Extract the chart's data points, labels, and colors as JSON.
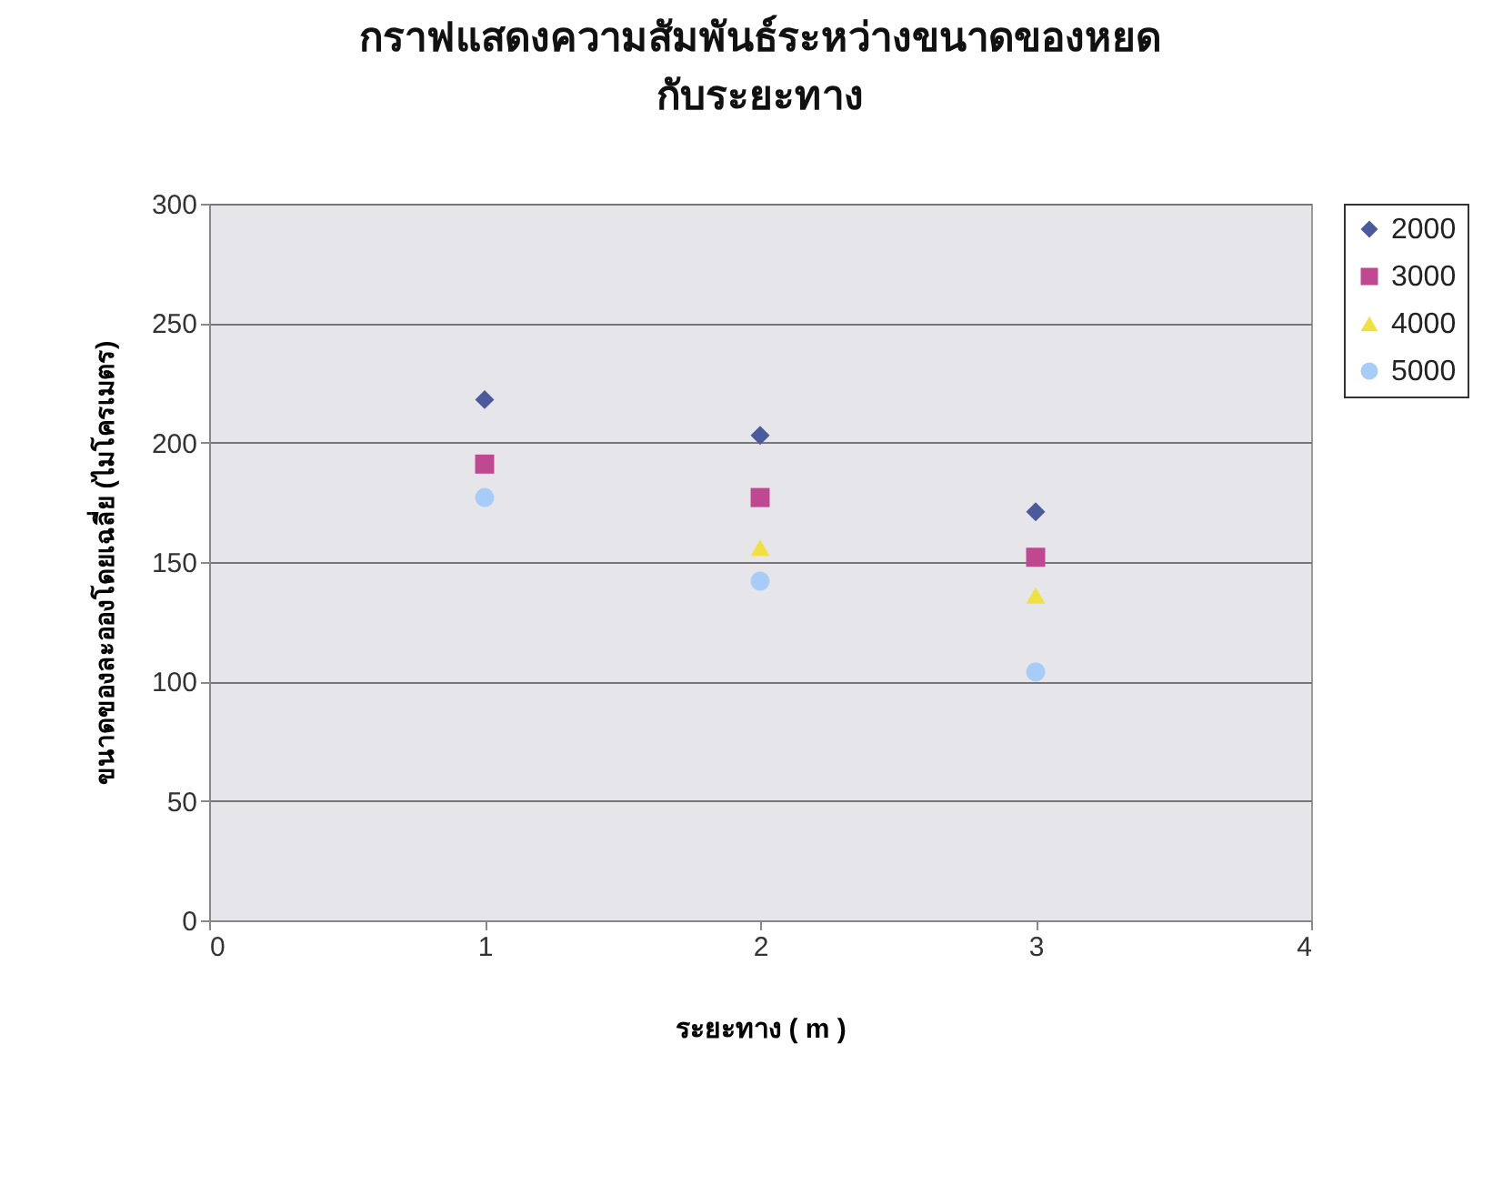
{
  "chart_data": {
    "type": "scatter",
    "title": [
      "กราฟแสดงความสัมพันธ์ระหว่างขนาดของหยด",
      "กับระยะทาง"
    ],
    "xlabel": "ระยะทาง ( m )",
    "ylabel": "ขนาดของละอองโดยเฉลี่ย (ไมโครเมตร)",
    "x": [
      1,
      2,
      3
    ],
    "series": [
      {
        "name": "2000",
        "color": "#4a5a9c",
        "marker": "diamond",
        "values": [
          218,
          203,
          171
        ]
      },
      {
        "name": "3000",
        "color": "#c04890",
        "marker": "square",
        "values": [
          191,
          177,
          152
        ]
      },
      {
        "name": "4000",
        "color": "#f0e040",
        "marker": "triangle",
        "values": [
          null,
          156,
          136
        ]
      },
      {
        "name": "5000",
        "color": "#a8ccf8",
        "marker": "circle",
        "values": [
          177,
          142,
          104
        ]
      }
    ],
    "xlim": [
      0,
      4
    ],
    "xticks": [
      0,
      1,
      2,
      3,
      4
    ],
    "ylim": [
      0,
      300
    ],
    "yticks": [
      0,
      50,
      100,
      150,
      200,
      250,
      300
    ],
    "grid": "y",
    "legend": "right"
  }
}
